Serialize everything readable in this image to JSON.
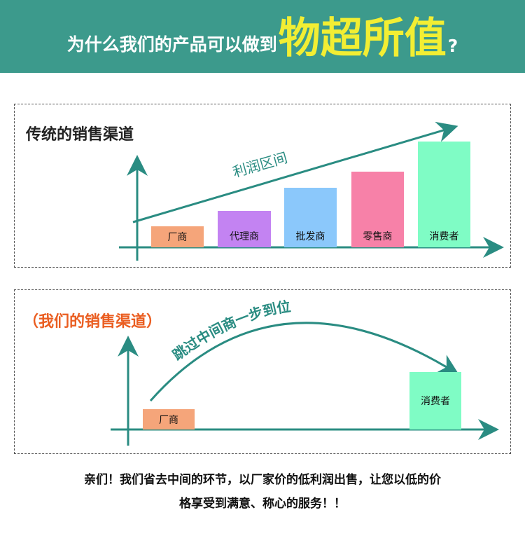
{
  "header": {
    "lead": "为什么我们的产品可以做到",
    "highlight": "物超所值",
    "question_mark": "?"
  },
  "traditional": {
    "title": "传统的销售渠道",
    "arrow_label": "利润区间",
    "bars": [
      {
        "label": "厂商",
        "color": "#f5a57a"
      },
      {
        "label": "代理商",
        "color": "#c383f2"
      },
      {
        "label": "批发商",
        "color": "#8bc8fb"
      },
      {
        "label": "零售商",
        "color": "#f781a8"
      },
      {
        "label": "消费者",
        "color": "#7ffcc5"
      }
    ]
  },
  "ours": {
    "title": "（我们的销售渠道）",
    "arrow_label": "跳过中间商一步到位",
    "bars": [
      {
        "label": "厂商",
        "color": "#f5a57a"
      },
      {
        "label": "消费者",
        "color": "#7ffcc5"
      }
    ]
  },
  "colors": {
    "header_bg": "#3c9a8c",
    "highlight": "#f2ee33",
    "axis": "#2a8c82",
    "orange_title": "#ea5d20"
  },
  "footer": {
    "line1": "亲们！我们省去中间的环节，以厂家价的低利润出售，让您以低的价",
    "line2": "格享受到满意、称心的服务！！"
  }
}
